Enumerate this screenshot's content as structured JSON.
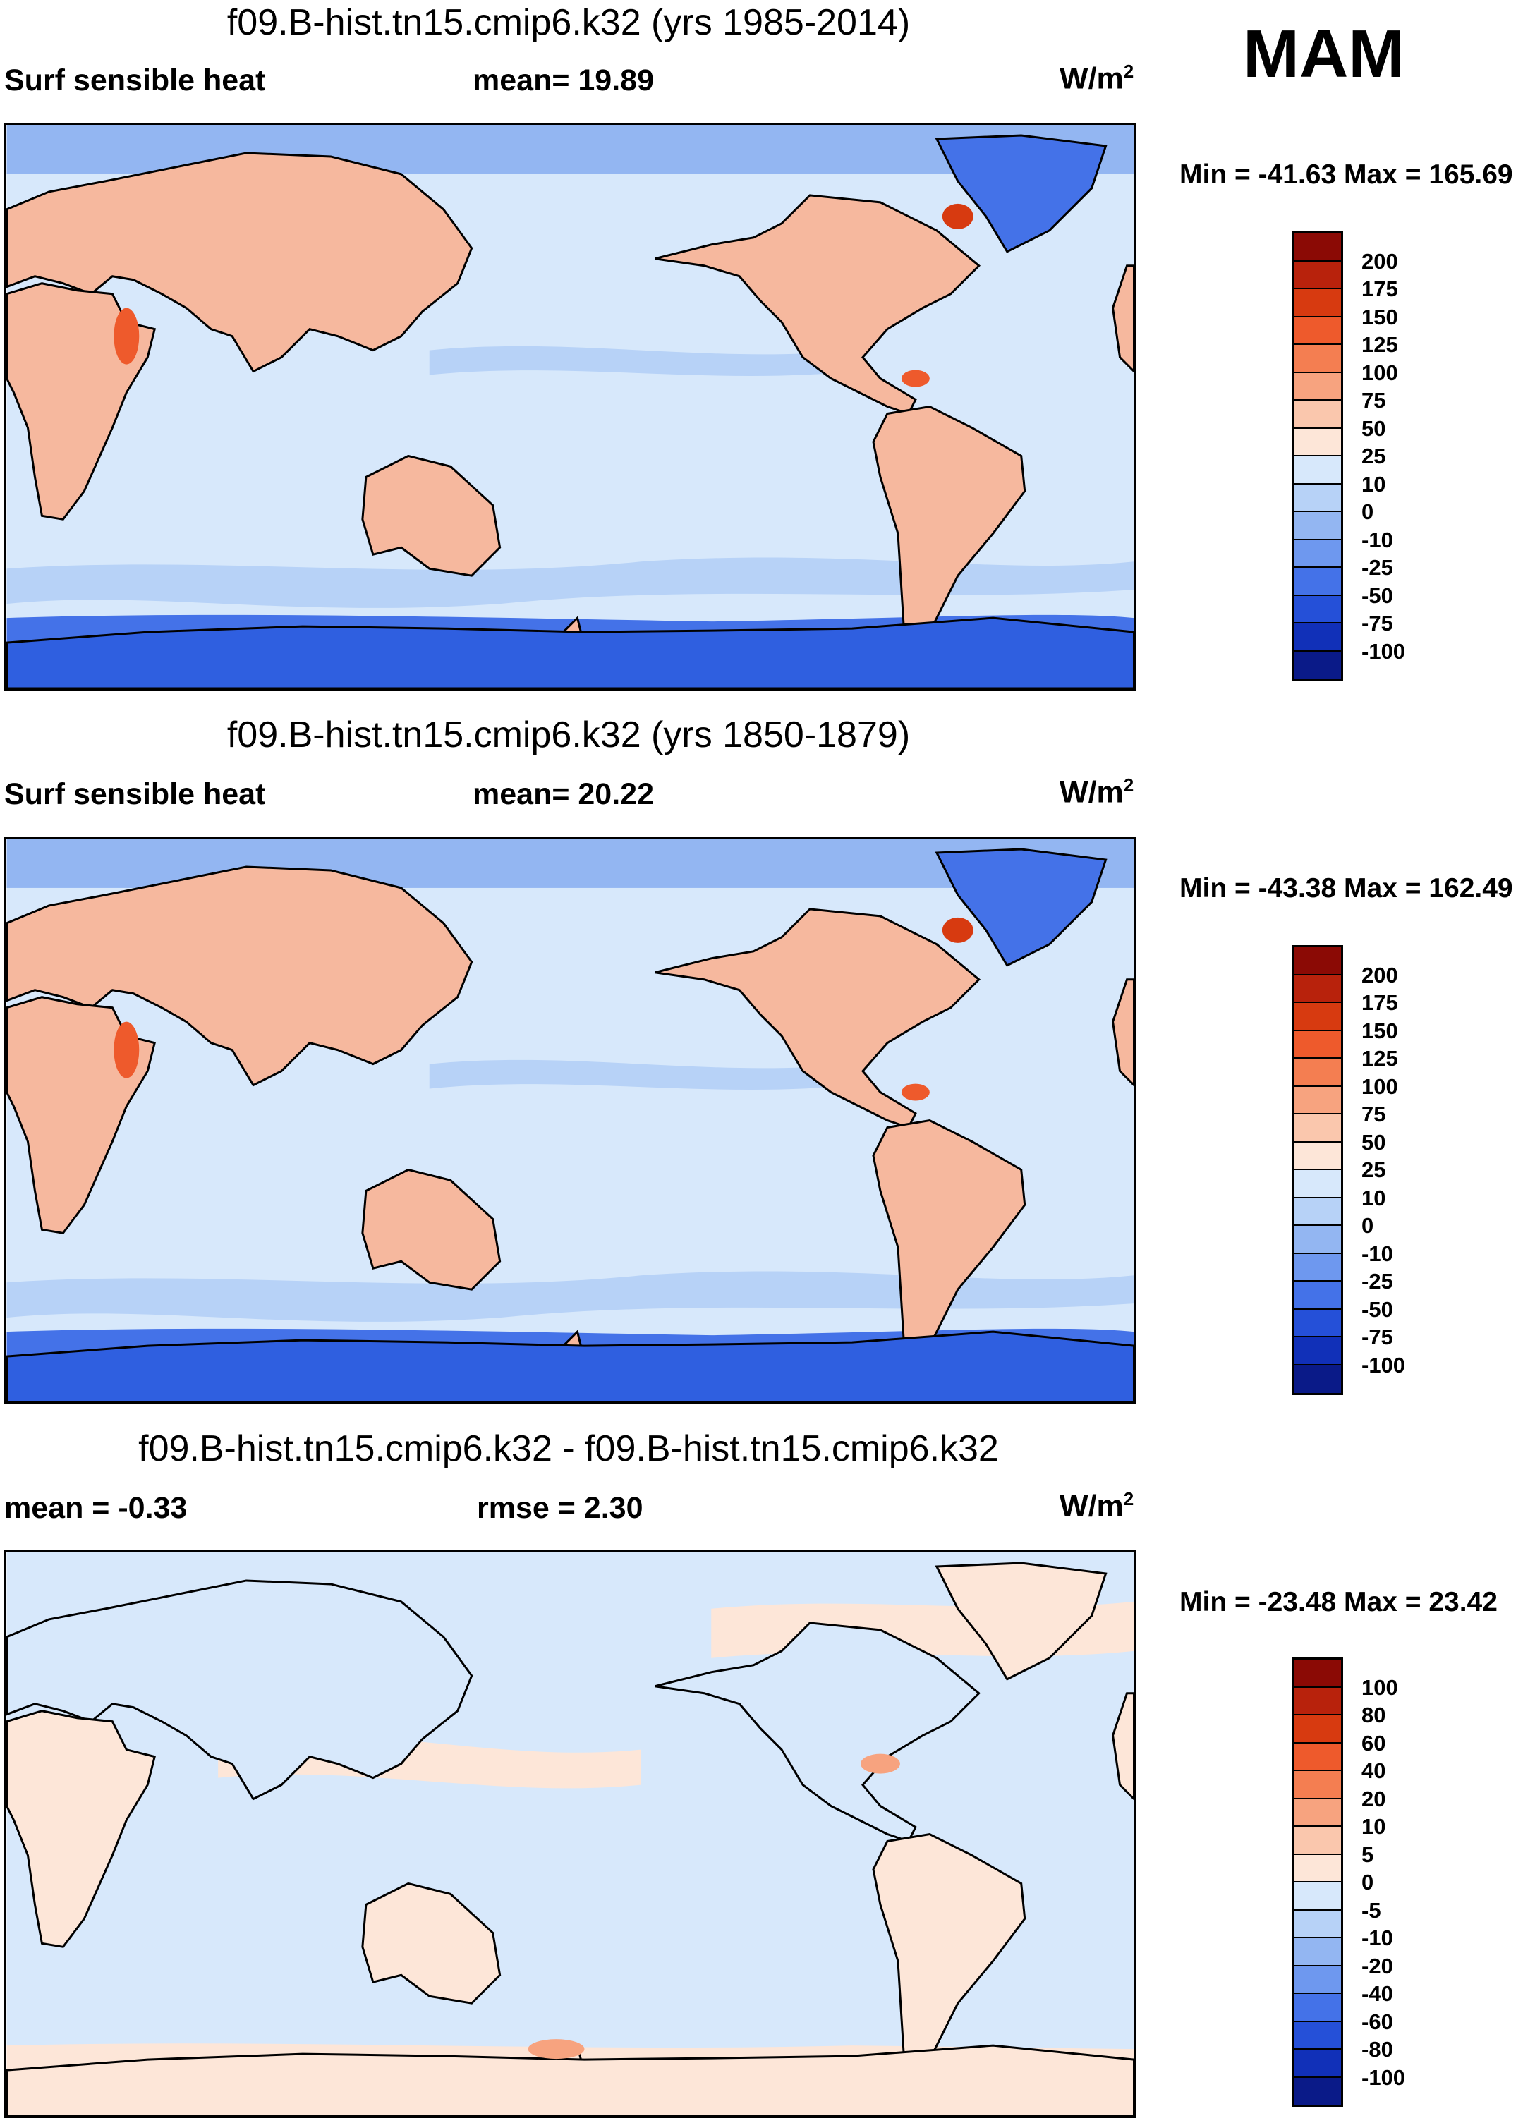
{
  "season": "MAM",
  "colors": {
    "land_warm": "#f6b89e",
    "ocean_light": "#d7e8fb",
    "ice_blue": "#3d6be0",
    "coast": "#000000"
  },
  "panels": [
    {
      "title": "f09.B-hist.tn15.cmip6.k32 (yrs 1985-2014)",
      "left_label": "Surf sensible heat",
      "center_label": "mean=  19.89",
      "unit_base": "W/m",
      "unit_sup": "2",
      "minmax": "Min = -41.63 Max = 165.69",
      "levels": [
        "200",
        "175",
        "150",
        "125",
        "100",
        "75",
        "50",
        "25",
        "10",
        "0",
        "-10",
        "-25",
        "-50",
        "-75",
        "-100"
      ],
      "colors": [
        "#8b0a05",
        "#b8220c",
        "#d73a10",
        "#ee5a2c",
        "#f47e51",
        "#f7a37f",
        "#fac7ad",
        "#fde6d8",
        "#d7e8fb",
        "#b7d2f7",
        "#93b6f2",
        "#6e98ef",
        "#4472e8",
        "#2550d8",
        "#1130b8",
        "#0a1a88"
      ],
      "kind": "climate"
    },
    {
      "title": "f09.B-hist.tn15.cmip6.k32 (yrs 1850-1879)",
      "left_label": "Surf sensible heat",
      "center_label": "mean=  20.22",
      "unit_base": "W/m",
      "unit_sup": "2",
      "minmax": "Min = -43.38 Max = 162.49",
      "levels": [
        "200",
        "175",
        "150",
        "125",
        "100",
        "75",
        "50",
        "25",
        "10",
        "0",
        "-10",
        "-25",
        "-50",
        "-75",
        "-100"
      ],
      "colors": [
        "#8b0a05",
        "#b8220c",
        "#d73a10",
        "#ee5a2c",
        "#f47e51",
        "#f7a37f",
        "#fac7ad",
        "#fde6d8",
        "#d7e8fb",
        "#b7d2f7",
        "#93b6f2",
        "#6e98ef",
        "#4472e8",
        "#2550d8",
        "#1130b8",
        "#0a1a88"
      ],
      "kind": "climate"
    },
    {
      "title": "f09.B-hist.tn15.cmip6.k32 - f09.B-hist.tn15.cmip6.k32",
      "left_label": "mean =  -0.33",
      "center_label": "rmse =   2.30",
      "unit_base": "W/m",
      "unit_sup": "2",
      "minmax": "Min = -23.48 Max =  23.42",
      "levels": [
        "100",
        "80",
        "60",
        "40",
        "20",
        "10",
        "5",
        "0",
        "-5",
        "-10",
        "-20",
        "-40",
        "-60",
        "-80",
        "-100"
      ],
      "colors": [
        "#8b0a05",
        "#b8220c",
        "#d73a10",
        "#ee5a2c",
        "#f47e51",
        "#f7a37f",
        "#fac7ad",
        "#fde6d8",
        "#d7e8fb",
        "#b7d2f7",
        "#93b6f2",
        "#6e98ef",
        "#4472e8",
        "#2550d8",
        "#1130b8",
        "#0a1a88"
      ],
      "kind": "difference"
    }
  ],
  "chart_data": {
    "type": "heatmap",
    "variable": "Surf sensible heat",
    "units": "W/m2",
    "season": "MAM",
    "maps": [
      {
        "title": "f09.B-hist.tn15.cmip6.k32 (yrs 1985-2014)",
        "mean": 19.89,
        "min": -41.63,
        "max": 165.69,
        "contour_levels": [
          -100,
          -75,
          -50,
          -25,
          -10,
          0,
          10,
          25,
          50,
          75,
          100,
          125,
          150,
          175,
          200
        ]
      },
      {
        "title": "f09.B-hist.tn15.cmip6.k32 (yrs 1850-1879)",
        "mean": 20.22,
        "min": -43.38,
        "max": 162.49,
        "contour_levels": [
          -100,
          -75,
          -50,
          -25,
          -10,
          0,
          10,
          25,
          50,
          75,
          100,
          125,
          150,
          175,
          200
        ]
      },
      {
        "title": "f09.B-hist.tn15.cmip6.k32 - f09.B-hist.tn15.cmip6.k32",
        "mean": -0.33,
        "rmse": 2.3,
        "min": -23.48,
        "max": 23.42,
        "contour_levels": [
          -100,
          -80,
          -60,
          -40,
          -20,
          -10,
          -5,
          0,
          5,
          10,
          20,
          40,
          60,
          80,
          100
        ]
      }
    ]
  }
}
